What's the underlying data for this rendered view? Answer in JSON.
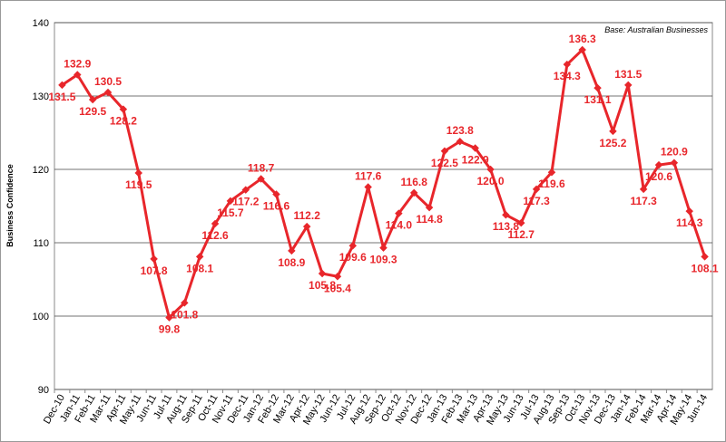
{
  "chart_data": {
    "type": "line",
    "y_label": "Business Confidence",
    "annotation": "Base: Australian Businesses",
    "categories": [
      "Dec-10",
      "Jan-11",
      "Feb-11",
      "Mar-11",
      "Apr-11",
      "May-11",
      "Jun-11",
      "Jul-11",
      "Aug-11",
      "Sep-11",
      "Oct-11",
      "Nov-11",
      "Dec-11",
      "Jan-12",
      "Feb-12",
      "Mar-12",
      "Apr-12",
      "May-12",
      "Jun-12",
      "Jul-12",
      "Aug-12",
      "Sep-12",
      "Oct-12",
      "Nov-12",
      "Dec-12",
      "Jan-13",
      "Feb-13",
      "Mar-13",
      "Apr-13",
      "May-13",
      "Jun-13",
      "Jul-13",
      "Aug-13",
      "Sep-13",
      "Oct-13",
      "Nov-13",
      "Dec-13",
      "Jan-14",
      "Feb-14",
      "Mar-14",
      "Apr-14",
      "May-14",
      "Jun-14"
    ],
    "values": [
      131.5,
      132.9,
      129.5,
      130.5,
      128.2,
      119.5,
      107.8,
      99.8,
      101.8,
      108.1,
      112.6,
      115.7,
      117.2,
      118.7,
      116.6,
      108.9,
      112.2,
      105.8,
      105.4,
      109.6,
      117.6,
      109.3,
      114.0,
      116.8,
      114.8,
      122.5,
      123.8,
      122.9,
      120.0,
      113.8,
      112.7,
      117.3,
      119.6,
      134.3,
      136.3,
      131.1,
      125.2,
      131.5,
      117.3,
      120.6,
      120.9,
      114.3,
      108.1
    ],
    "value_labels": [
      "131.5",
      "132.9",
      "129.5",
      "130.5",
      "128.2",
      "119.5",
      "107.8",
      "99.8",
      "101.8",
      "108.1",
      "112.6",
      "115.7",
      "117.2",
      "118.7",
      "116.6",
      "108.9",
      "112.2",
      "105.8",
      "105.4",
      "109.6",
      "117.6",
      "109.3",
      "114.0",
      "116.8",
      "114.8",
      "122.5",
      "123.8",
      "122.9",
      "120.0",
      "113.8",
      "112.7",
      "117.3",
      "119.6",
      "134.3",
      "136.3",
      "131.1",
      "125.2",
      "131.5",
      "117.3",
      "120.6",
      "120.9",
      "114.3",
      "108.1"
    ],
    "color": "#e8262b",
    "ylim": [
      90,
      140
    ],
    "yticks": [
      90,
      100,
      110,
      120,
      130,
      140
    ],
    "grid": true
  }
}
